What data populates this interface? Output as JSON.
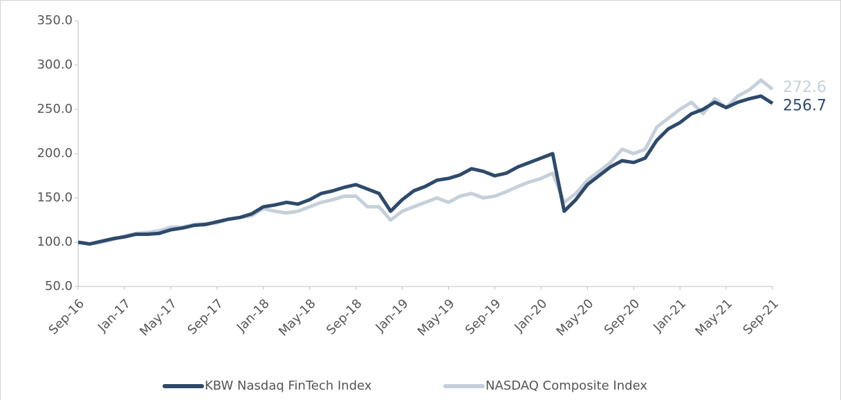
{
  "chart_data": {
    "type": "line",
    "x": [
      "2016-09",
      "2016-10",
      "2016-11",
      "2016-12",
      "2017-01",
      "2017-02",
      "2017-03",
      "2017-04",
      "2017-05",
      "2017-06",
      "2017-07",
      "2017-08",
      "2017-09",
      "2017-10",
      "2017-11",
      "2017-12",
      "2018-01",
      "2018-02",
      "2018-03",
      "2018-04",
      "2018-05",
      "2018-06",
      "2018-07",
      "2018-08",
      "2018-09",
      "2018-10",
      "2018-11",
      "2018-12",
      "2019-01",
      "2019-02",
      "2019-03",
      "2019-04",
      "2019-05",
      "2019-06",
      "2019-07",
      "2019-08",
      "2019-09",
      "2019-10",
      "2019-11",
      "2019-12",
      "2020-01",
      "2020-02",
      "2020-03",
      "2020-04",
      "2020-05",
      "2020-06",
      "2020-07",
      "2020-08",
      "2020-09",
      "2020-10",
      "2020-11",
      "2020-12",
      "2021-01",
      "2021-02",
      "2021-03",
      "2021-04",
      "2021-05",
      "2021-06",
      "2021-07",
      "2021-08",
      "2021-09"
    ],
    "series": [
      {
        "name": "KBW Nasdaq FinTech Index",
        "color": "#2e4a6b",
        "values": [
          100,
          98,
          101,
          104,
          106,
          109,
          109,
          110,
          114,
          116,
          119,
          120,
          123,
          126,
          128,
          132,
          140,
          142,
          145,
          143,
          148,
          155,
          158,
          162,
          165,
          160,
          155,
          135,
          148,
          158,
          163,
          170,
          172,
          176,
          183,
          180,
          175,
          178,
          185,
          190,
          195,
          200,
          135,
          148,
          165,
          175,
          185,
          192,
          190,
          195,
          215,
          228,
          235,
          245,
          250,
          258,
          252,
          258,
          262,
          265,
          256.7
        ]
      },
      {
        "name": "NASDAQ Composite Index",
        "color": "#c5d0db",
        "values": [
          100,
          98,
          100,
          103,
          107,
          110,
          111,
          113,
          117,
          117,
          120,
          121,
          122,
          126,
          128,
          130,
          138,
          135,
          133,
          135,
          140,
          145,
          148,
          152,
          152,
          140,
          140,
          125,
          135,
          140,
          145,
          150,
          145,
          152,
          155,
          150,
          152,
          157,
          163,
          168,
          172,
          178,
          145,
          155,
          170,
          180,
          190,
          205,
          200,
          205,
          230,
          240,
          250,
          258,
          245,
          262,
          252,
          265,
          272,
          283,
          272.6
        ]
      }
    ],
    "ylim": [
      50,
      350
    ],
    "yticks": [
      {
        "value": 50,
        "label": "50.0"
      },
      {
        "value": 100,
        "label": "100.0"
      },
      {
        "value": 150,
        "label": "150.0"
      },
      {
        "value": 200,
        "label": "200.0"
      },
      {
        "value": 250,
        "label": "250.0"
      },
      {
        "value": 300,
        "label": "300.0"
      },
      {
        "value": 350,
        "label": "350.0"
      }
    ],
    "xticks": [
      {
        "value": "2016-09",
        "label": "Sep-16"
      },
      {
        "value": "2017-01",
        "label": "Jan-17"
      },
      {
        "value": "2017-05",
        "label": "May-17"
      },
      {
        "value": "2017-09",
        "label": "Sep-17"
      },
      {
        "value": "2018-01",
        "label": "Jan-18"
      },
      {
        "value": "2018-05",
        "label": "May-18"
      },
      {
        "value": "2018-09",
        "label": "Sep-18"
      },
      {
        "value": "2019-01",
        "label": "Jan-19"
      },
      {
        "value": "2019-05",
        "label": "May-19"
      },
      {
        "value": "2019-09",
        "label": "Sep-19"
      },
      {
        "value": "2020-01",
        "label": "Jan-20"
      },
      {
        "value": "2020-05",
        "label": "May-20"
      },
      {
        "value": "2020-09",
        "label": "Sep-20"
      },
      {
        "value": "2021-01",
        "label": "Jan-21"
      },
      {
        "value": "2021-05",
        "label": "May-21"
      },
      {
        "value": "2021-09",
        "label": "Sep-21"
      }
    ],
    "grid": false,
    "legend": "bottom"
  }
}
